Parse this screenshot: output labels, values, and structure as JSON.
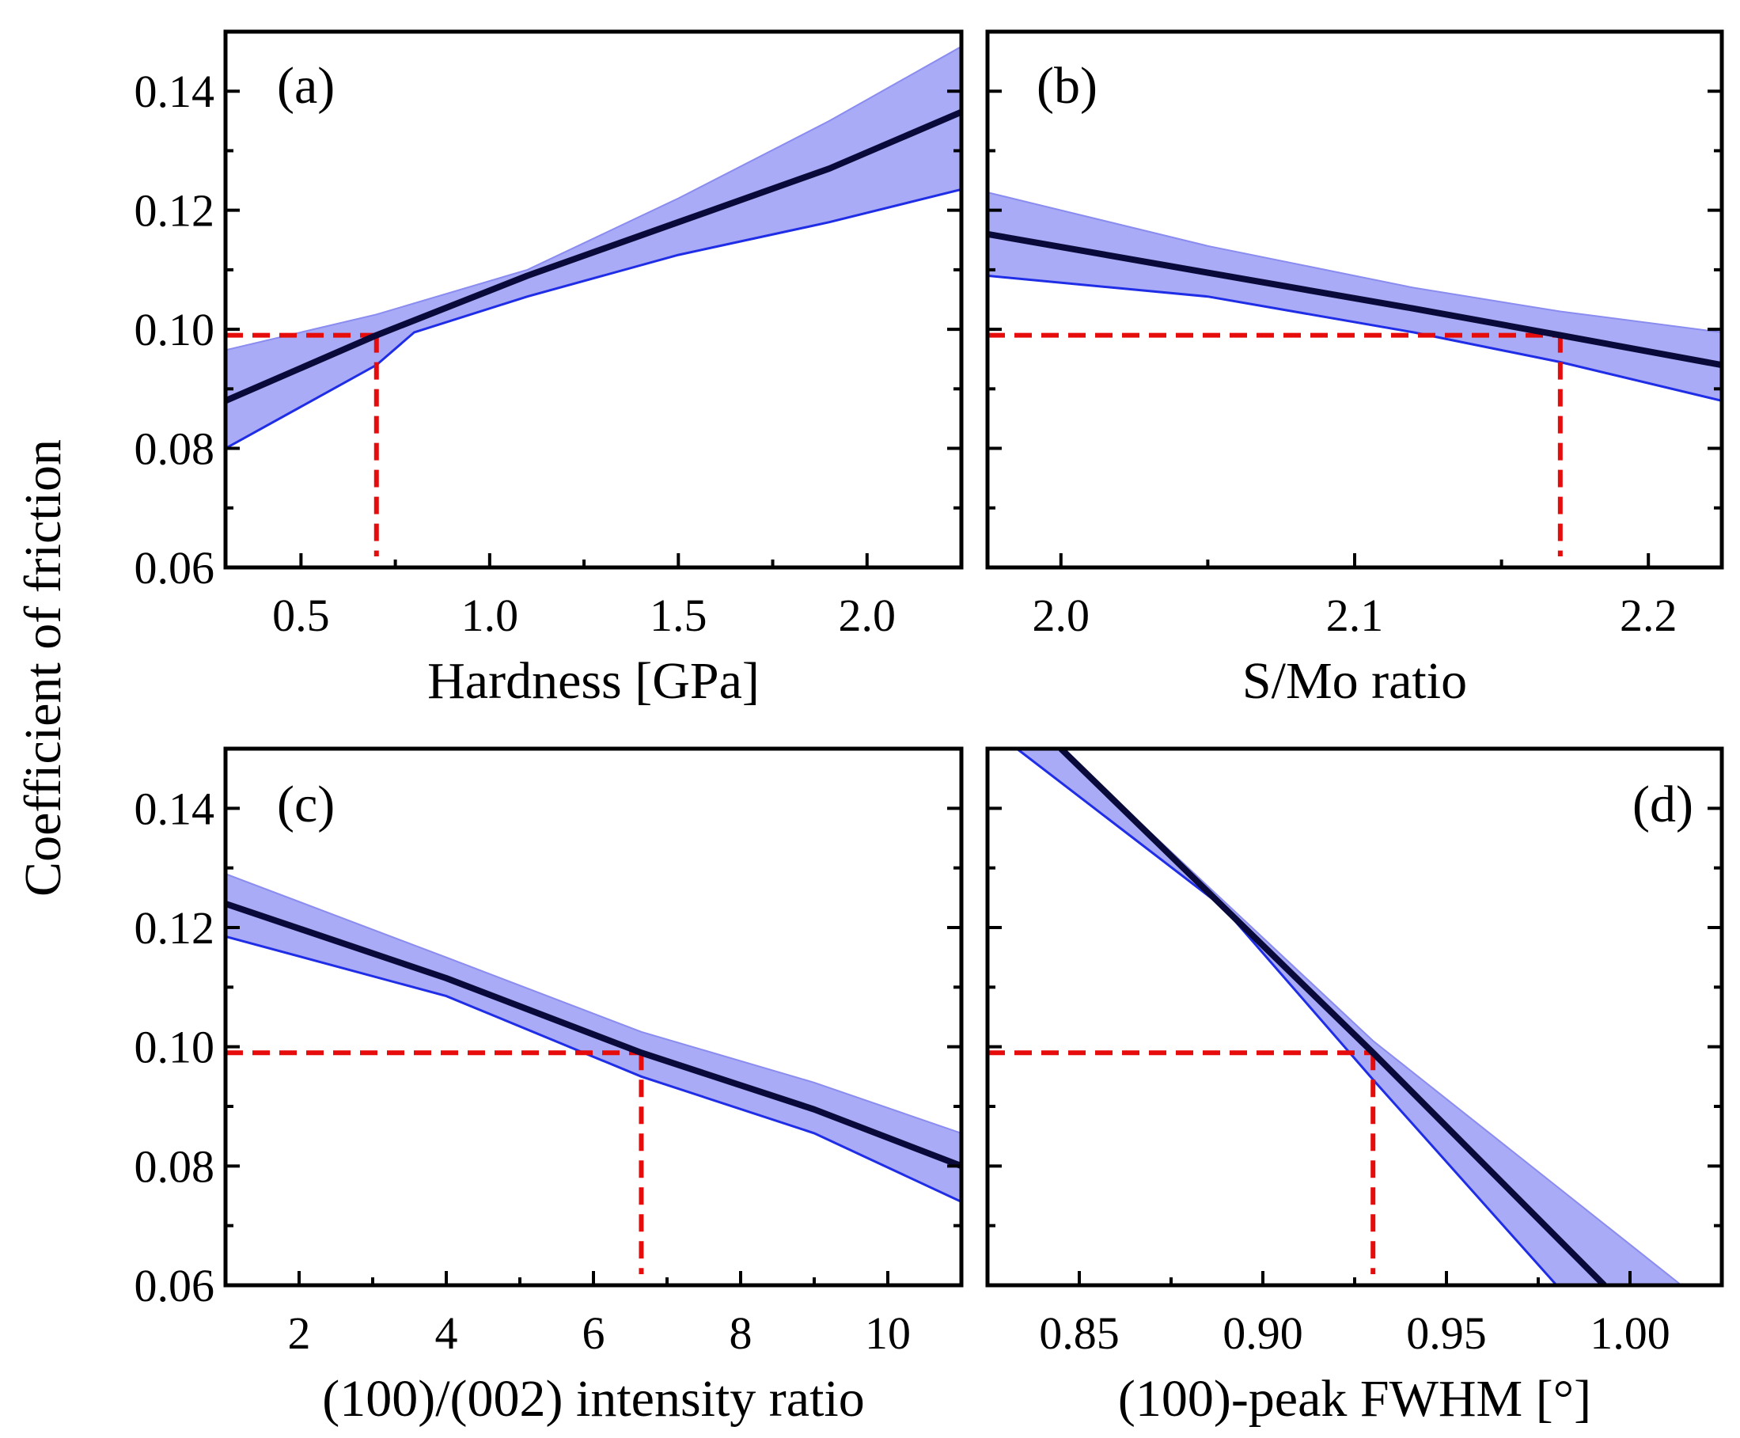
{
  "colors": {
    "band_fill": "#a9abf6",
    "band_lower_edge": "#1f2ee6",
    "mean_line": "#0a0a3a",
    "guide_line": "#e60c0c",
    "axes": "#000000"
  },
  "shared_ylabel": "Coefficient of friction",
  "chart_data": [
    {
      "panel": "(a)",
      "type": "line",
      "xlabel": "Hardness [GPa]",
      "ylabel": "Coefficient of friction",
      "xlim": [
        0.3,
        2.25
      ],
      "ylim": [
        0.06,
        0.15
      ],
      "xticks": [
        0.5,
        1.0,
        1.5,
        2.0
      ],
      "xtick_labels": [
        "0.5",
        "1.0",
        "1.5",
        "2.0"
      ],
      "xminor": [
        0.75,
        1.25,
        1.75
      ],
      "yticks": [
        0.06,
        0.08,
        0.1,
        0.12,
        0.14
      ],
      "ytick_labels": [
        "0.06",
        "0.08",
        "0.10",
        "0.12",
        "0.14"
      ],
      "mean": {
        "x": [
          0.3,
          0.7,
          1.1,
          1.5,
          1.9,
          2.25
        ],
        "y": [
          0.088,
          0.099,
          0.109,
          0.118,
          0.127,
          0.1365
        ]
      },
      "band_upper": {
        "x": [
          0.3,
          0.7,
          1.1,
          1.5,
          1.9,
          2.25
        ],
        "y": [
          0.0965,
          0.1025,
          0.11,
          0.122,
          0.135,
          0.1475
        ]
      },
      "band_lower": {
        "x": [
          0.3,
          0.7,
          0.8,
          1.1,
          1.5,
          1.9,
          2.25
        ],
        "y": [
          0.08,
          0.094,
          0.0995,
          0.1055,
          0.1125,
          0.118,
          0.1235
        ]
      },
      "guide": {
        "x": 0.7,
        "y": 0.099
      }
    },
    {
      "panel": "(b)",
      "type": "line",
      "xlabel": "S/Mo ratio",
      "ylabel": "",
      "xlim": [
        1.975,
        2.225
      ],
      "ylim": [
        0.06,
        0.15
      ],
      "xticks": [
        2.0,
        2.1,
        2.2
      ],
      "xtick_labels": [
        "2.0",
        "2.1",
        "2.2"
      ],
      "xminor": [
        2.05,
        2.15
      ],
      "yticks": [
        0.06,
        0.08,
        0.1,
        0.12,
        0.14
      ],
      "ytick_labels": [
        "",
        "",
        "",
        "",
        ""
      ],
      "mean": {
        "x": [
          1.975,
          2.05,
          2.12,
          2.17,
          2.225
        ],
        "y": [
          0.116,
          0.1095,
          0.1035,
          0.099,
          0.094
        ]
      },
      "band_upper": {
        "x": [
          1.975,
          2.05,
          2.12,
          2.17,
          2.225
        ],
        "y": [
          0.123,
          0.114,
          0.107,
          0.103,
          0.0995
        ]
      },
      "band_lower": {
        "x": [
          1.975,
          2.05,
          2.12,
          2.17,
          2.225
        ],
        "y": [
          0.109,
          0.1055,
          0.0995,
          0.0945,
          0.088
        ]
      },
      "guide": {
        "x": 2.17,
        "y": 0.099
      }
    },
    {
      "panel": "(c)",
      "type": "line",
      "xlabel": "(100)/(002) intensity ratio",
      "ylabel": "",
      "xlim": [
        1.0,
        11.0
      ],
      "ylim": [
        0.06,
        0.15
      ],
      "xticks": [
        2,
        4,
        6,
        8,
        10
      ],
      "xtick_labels": [
        "2",
        "4",
        "6",
        "8",
        "10"
      ],
      "xminor": [
        3,
        5,
        7,
        9
      ],
      "yticks": [
        0.06,
        0.08,
        0.1,
        0.12,
        0.14
      ],
      "ytick_labels": [
        "0.06",
        "0.08",
        "0.10",
        "0.12",
        "0.14"
      ],
      "mean": {
        "x": [
          1.0,
          4.0,
          6.65,
          9.0,
          11.0
        ],
        "y": [
          0.124,
          0.1115,
          0.099,
          0.0895,
          0.08
        ]
      },
      "band_upper": {
        "x": [
          1.0,
          4.0,
          6.65,
          9.0,
          11.0
        ],
        "y": [
          0.129,
          0.115,
          0.1025,
          0.094,
          0.0855
        ]
      },
      "band_lower": {
        "x": [
          1.0,
          4.0,
          6.65,
          9.0,
          11.0
        ],
        "y": [
          0.1185,
          0.1085,
          0.095,
          0.0855,
          0.074
        ]
      },
      "guide": {
        "x": 6.65,
        "y": 0.099
      }
    },
    {
      "panel": "(d)",
      "type": "line",
      "xlabel": "(100)-peak FWHM [°]",
      "ylabel": "",
      "xlim": [
        0.825,
        1.025
      ],
      "ylim": [
        0.06,
        0.15
      ],
      "xticks": [
        0.85,
        0.9,
        0.95,
        1.0
      ],
      "xtick_labels": [
        "0.85",
        "0.90",
        "0.95",
        "1.00"
      ],
      "xminor": [
        0.875,
        0.925,
        0.975
      ],
      "yticks": [
        0.06,
        0.08,
        0.1,
        0.12,
        0.14
      ],
      "ytick_labels": [
        "",
        "",
        "",
        "",
        ""
      ],
      "mean": {
        "x": [
          0.845,
          0.93,
          0.993
        ],
        "y": [
          0.15,
          0.099,
          0.06
        ]
      },
      "band_upper": {
        "x": [
          0.845,
          0.93,
          1.014
        ],
        "y": [
          0.15,
          0.101,
          0.06
        ]
      },
      "band_lower": {
        "x": [
          0.833,
          0.889,
          0.93,
          0.98
        ],
        "y": [
          0.15,
          0.1235,
          0.0945,
          0.06
        ]
      },
      "guide": {
        "x": 0.93,
        "y": 0.099
      }
    }
  ]
}
